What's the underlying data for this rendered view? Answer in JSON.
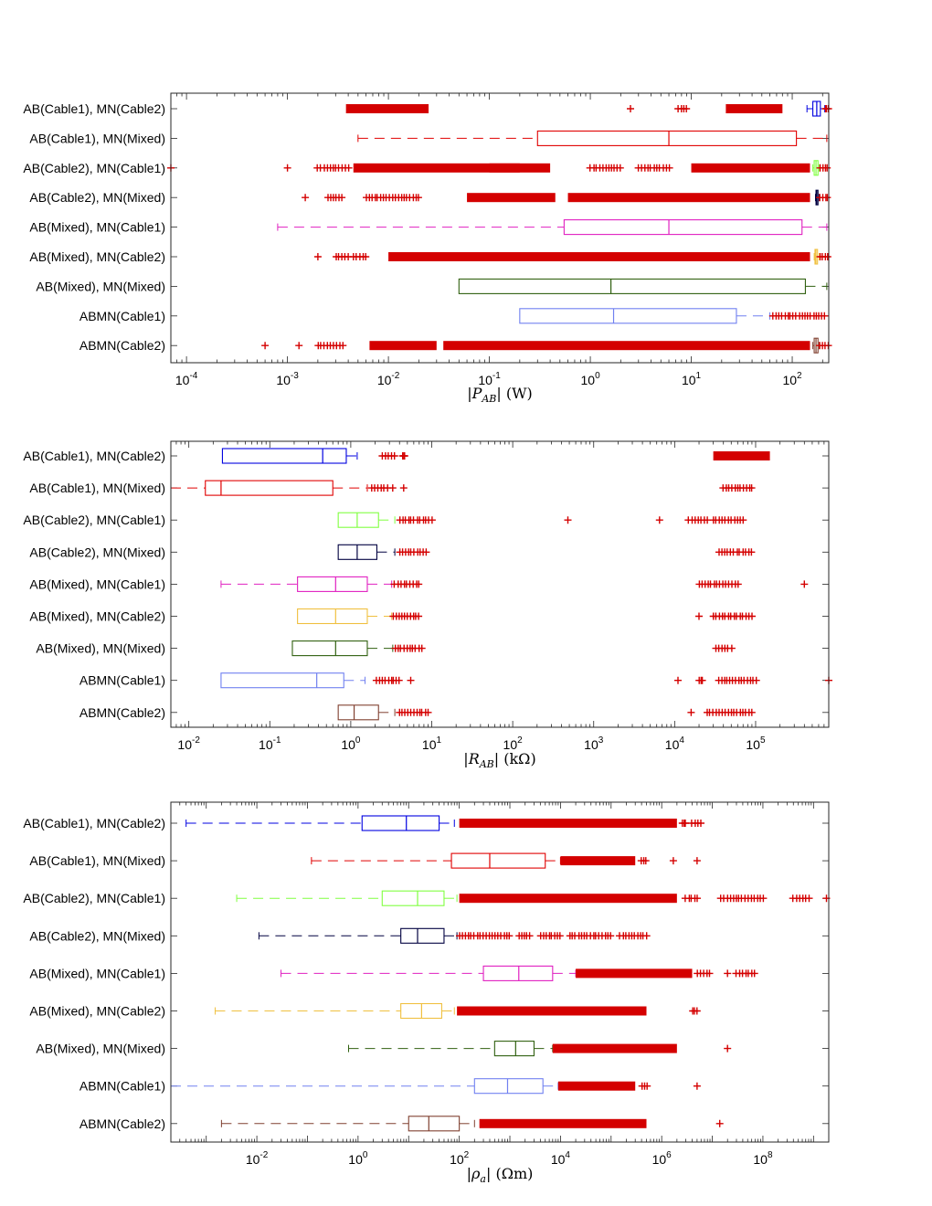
{
  "chart_data": [
    {
      "type": "box",
      "xlabel": "|P_AB| (W)",
      "xscale": "log",
      "xlim": [
        7e-05,
        230
      ],
      "xticks": [
        0.0001,
        0.001,
        0.01,
        0.1,
        1,
        10,
        100
      ],
      "xtick_labels": [
        {
          "base": "10",
          "exp": "-4"
        },
        {
          "base": "10",
          "exp": "-3"
        },
        {
          "base": "10",
          "exp": "-2"
        },
        {
          "base": "10",
          "exp": "-1"
        },
        {
          "base": "10",
          "exp": "0"
        },
        {
          "base": "10",
          "exp": "1"
        },
        {
          "base": "10",
          "exp": "2"
        }
      ],
      "categories": [
        "AB(Cable1), MN(Cable2)",
        "AB(Cable1), MN(Mixed)",
        "AB(Cable2), MN(Cable1)",
        "AB(Cable2), MN(Mixed)",
        "AB(Mixed), MN(Cable1)",
        "AB(Mixed), MN(Cable2)",
        "AB(Mixed), MN(Mixed)",
        "ABMN(Cable1)",
        "ABMN(Cable2)"
      ],
      "series": [
        {
          "color": "#0000e0",
          "whisker_low": 140,
          "q1": 160,
          "median": 175,
          "q3": 190,
          "whisker_high": 210,
          "outliers": [
            [
              0.0038,
              0.025
            ],
            2.5,
            [
              7.5,
              9
            ],
            [
              22,
              80
            ],
            [
              215,
              225
            ]
          ]
        },
        {
          "color": "#e00000",
          "whisker_low": 0.005,
          "q1": 0.3,
          "median": 6,
          "q3": 110,
          "whisker_high": 220,
          "outliers": []
        },
        {
          "color": "#80ff40",
          "whisker_low": 160,
          "q1": 165,
          "median": 172,
          "q3": 180,
          "whisker_high": 185,
          "outliers": [
            7e-05,
            0.001,
            [
              0.002,
              0.004
            ],
            [
              0.0045,
              0.2
            ],
            [
              0.1,
              0.4
            ],
            [
              1,
              2
            ],
            [
              3,
              6
            ],
            [
              10,
              150
            ],
            [
              190,
              225
            ]
          ]
        },
        {
          "color": "#000040",
          "whisker_low": 170,
          "q1": 172,
          "median": 175,
          "q3": 180,
          "whisker_high": 185,
          "outliers": [
            0.0015,
            [
              0.0025,
              0.0035
            ],
            [
              0.006,
              0.02
            ],
            [
              0.06,
              0.45
            ],
            [
              0.6,
              150
            ],
            [
              190,
              225
            ]
          ]
        },
        {
          "color": "#e020c0",
          "whisker_low": 0.0008,
          "q1": 0.55,
          "median": 6,
          "q3": 125,
          "whisker_high": 220,
          "outliers": []
        },
        {
          "color": "#f0c040",
          "whisker_low": 165,
          "q1": 168,
          "median": 172,
          "q3": 178,
          "whisker_high": 185,
          "outliers": [
            0.002,
            [
              0.003,
              0.004
            ],
            [
              0.0045,
              0.006
            ],
            [
              0.01,
              150
            ],
            [
              190,
              225
            ]
          ]
        },
        {
          "color": "#306010",
          "whisker_low": 0.05,
          "q1": 0.05,
          "median": 1.6,
          "q3": 135,
          "whisker_high": 220,
          "outliers": []
        },
        {
          "color": "#7080f0",
          "whisker_low": 0.2,
          "q1": 0.2,
          "median": 1.7,
          "q3": 28,
          "whisker_high": 60,
          "outliers": [
            [
              65,
              210
            ]
          ]
        },
        {
          "color": "#804030",
          "whisker_low": 160,
          "q1": 165,
          "median": 172,
          "q3": 180,
          "whisker_high": 185,
          "outliers": [
            0.0006,
            0.0013,
            [
              0.002,
              0.0035
            ],
            [
              0.0065,
              0.03
            ],
            [
              0.035,
              150
            ],
            [
              190,
              225
            ]
          ]
        }
      ]
    },
    {
      "type": "box",
      "xlabel": "|R_AB| (kΩ)",
      "xscale": "log",
      "xlim": [
        0.006,
        800000
      ],
      "xticks": [
        0.01,
        0.1,
        1,
        10,
        100,
        1000,
        10000,
        100000
      ],
      "xtick_labels": [
        {
          "base": "10",
          "exp": "-2"
        },
        {
          "base": "10",
          "exp": "-1"
        },
        {
          "base": "10",
          "exp": "0"
        },
        {
          "base": "10",
          "exp": "1"
        },
        {
          "base": "10",
          "exp": "2"
        },
        {
          "base": "10",
          "exp": "3"
        },
        {
          "base": "10",
          "exp": "4"
        },
        {
          "base": "10",
          "exp": "5"
        }
      ],
      "categories": [
        "AB(Cable1), MN(Cable2)",
        "AB(Cable1), MN(Mixed)",
        "AB(Cable2), MN(Cable1)",
        "AB(Cable2), MN(Mixed)",
        "AB(Mixed), MN(Cable1)",
        "AB(Mixed), MN(Cable2)",
        "AB(Mixed), MN(Mixed)",
        "ABMN(Cable1)",
        "ABMN(Cable2)"
      ],
      "series": [
        {
          "color": "#0000e0",
          "whisker_low": 0.026,
          "q1": 0.026,
          "median": 0.45,
          "q3": 0.88,
          "whisker_high": 1.2,
          "outliers": [
            [
              2.5,
              3.5
            ],
            [
              4.3,
              4.7
            ],
            [
              30000,
              150000
            ]
          ]
        },
        {
          "color": "#e00000",
          "whisker_low": 0.006,
          "q1": 0.016,
          "median": 0.025,
          "q3": 0.6,
          "whisker_high": 1.6,
          "outliers": [
            [
              1.8,
              2.8
            ],
            3.3,
            4.5,
            [
              40000,
              90000
            ]
          ]
        },
        {
          "color": "#80ff40",
          "whisker_low": 0.7,
          "q1": 0.7,
          "median": 1.2,
          "q3": 2.2,
          "whisker_high": 3.5,
          "outliers": [
            [
              4,
              10
            ],
            480,
            6500,
            [
              15000,
              25000
            ],
            [
              30000,
              70000
            ]
          ]
        },
        {
          "color": "#000040",
          "whisker_low": 0.7,
          "q1": 0.7,
          "median": 1.2,
          "q3": 2.1,
          "whisker_high": 3.5,
          "outliers": [
            [
              4,
              8.5
            ],
            [
              35000,
              90000
            ]
          ]
        },
        {
          "color": "#e020c0",
          "whisker_low": 0.025,
          "q1": 0.22,
          "median": 0.65,
          "q3": 1.6,
          "whisker_high": 3.2,
          "outliers": [
            [
              3.5,
              7
            ],
            [
              20000,
              60000
            ],
            400000
          ]
        },
        {
          "color": "#f0c040",
          "whisker_low": 0.22,
          "q1": 0.22,
          "median": 0.65,
          "q3": 1.6,
          "whisker_high": 3.2,
          "outliers": [
            [
              3.3,
              7
            ],
            20000,
            [
              30000,
              90000
            ]
          ]
        },
        {
          "color": "#306010",
          "whisker_low": 0.19,
          "q1": 0.19,
          "median": 0.65,
          "q3": 1.6,
          "whisker_high": 3.3,
          "outliers": [
            [
              3.5,
              7.5
            ],
            [
              32000,
              50000
            ]
          ]
        },
        {
          "color": "#7080f0",
          "whisker_low": 0.025,
          "q1": 0.025,
          "median": 0.38,
          "q3": 0.82,
          "whisker_high": 1.5,
          "outliers": [
            [
              2.1,
              4
            ],
            5.5,
            11000,
            [
              20000,
              22000
            ],
            [
              35000,
              100000
            ],
            800000
          ]
        },
        {
          "color": "#804030",
          "whisker_low": 0.7,
          "q1": 0.7,
          "median": 1.1,
          "q3": 2.2,
          "whisker_high": 3.5,
          "outliers": [
            [
              4,
              9
            ],
            16000,
            [
              25000,
              90000
            ]
          ]
        }
      ]
    },
    {
      "type": "box",
      "xlabel": "|ρ_a| (Ωm)",
      "xscale": "log",
      "xlim": [
        0.0002,
        2000000000
      ],
      "xticks": [
        0.01,
        1,
        100,
        10000,
        1000000,
        100000000
      ],
      "xtick_labels": [
        {
          "base": "10",
          "exp": "-2"
        },
        {
          "base": "10",
          "exp": "0"
        },
        {
          "base": "10",
          "exp": "2"
        },
        {
          "base": "10",
          "exp": "4"
        },
        {
          "base": "10",
          "exp": "6"
        },
        {
          "base": "10",
          "exp": "8"
        }
      ],
      "categories": [
        "AB(Cable1), MN(Cable2)",
        "AB(Cable1), MN(Mixed)",
        "AB(Cable2), MN(Cable1)",
        "AB(Cable2), MN(Mixed)",
        "AB(Mixed), MN(Cable1)",
        "AB(Mixed), MN(Cable2)",
        "AB(Mixed), MN(Mixed)",
        "ABMN(Cable1)",
        "ABMN(Cable2)"
      ],
      "series": [
        {
          "color": "#0000e0",
          "whisker_low": 0.0004,
          "q1": 1.2,
          "median": 9,
          "q3": 40,
          "whisker_high": 80,
          "outliers": [
            [
              100,
              2000000
            ],
            [
              2500000,
              3000000
            ],
            [
              4000000,
              6000000
            ]
          ]
        },
        {
          "color": "#e00000",
          "whisker_low": 0.12,
          "q1": 70,
          "median": 400,
          "q3": 5000,
          "whisker_high": 10000,
          "outliers": [
            [
              10000,
              300000
            ],
            [
              400000,
              500000
            ],
            1700000,
            5000000
          ]
        },
        {
          "color": "#80ff40",
          "whisker_low": 0.004,
          "q1": 3,
          "median": 15,
          "q3": 50,
          "whisker_high": 90,
          "outliers": [
            [
              100,
              2000000
            ],
            [
              3000000,
              5000000
            ],
            [
              15000000,
              100000000
            ],
            [
              400000000,
              800000000
            ],
            1800000000
          ]
        },
        {
          "color": "#000040",
          "whisker_low": 0.011,
          "q1": 7,
          "median": 15,
          "q3": 50,
          "whisker_high": 90,
          "outliers": [
            [
              100,
              1000
            ],
            [
              1500,
              2500
            ],
            [
              4000,
              10000
            ],
            [
              15000,
              100000
            ],
            [
              150000,
              500000
            ]
          ]
        },
        {
          "color": "#e020c0",
          "whisker_low": 0.03,
          "q1": 300,
          "median": 1500,
          "q3": 7000,
          "whisker_high": 20000,
          "outliers": [
            [
              20000,
              4000000
            ],
            [
              5000000,
              9000000
            ],
            20000000,
            [
              30000000,
              70000000
            ]
          ]
        },
        {
          "color": "#f0c040",
          "whisker_low": 0.0015,
          "q1": 7,
          "median": 18,
          "q3": 45,
          "whisker_high": 80,
          "outliers": [
            [
              90,
              500000
            ],
            [
              4000000,
              5000000
            ]
          ]
        },
        {
          "color": "#306010",
          "whisker_low": 0.65,
          "q1": 500,
          "median": 1300,
          "q3": 3000,
          "whisker_high": 7000,
          "outliers": [
            [
              7000,
              2000000
            ],
            20000000
          ]
        },
        {
          "color": "#7080f0",
          "whisker_low": 0.0002,
          "q1": 200,
          "median": 900,
          "q3": 4500,
          "whisker_high": 9000,
          "outliers": [
            [
              9000,
              300000
            ],
            [
              400000,
              500000
            ],
            5000000
          ]
        },
        {
          "color": "#804030",
          "whisker_low": 0.002,
          "q1": 10,
          "median": 25,
          "q3": 100,
          "whisker_high": 200,
          "outliers": [
            [
              250,
              500000
            ],
            14000000
          ]
        }
      ]
    }
  ]
}
